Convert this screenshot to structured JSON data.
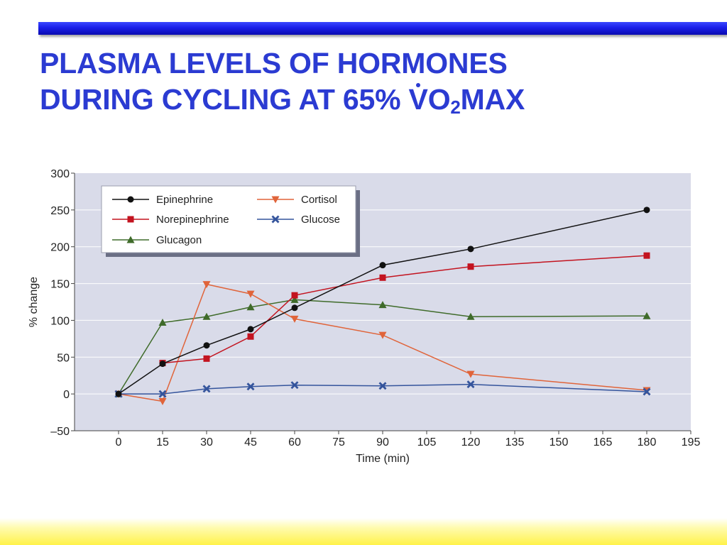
{
  "slide": {
    "title_line1": "PLASMA LEVELS OF HORMONES",
    "title_line2_pre": "DURING CYCLING AT 65% ",
    "title_v": "V",
    "title_o": "O",
    "title_sub": "2",
    "title_post": "MAX"
  },
  "colors": {
    "title": "#2b3bd2",
    "plot_background": "#d9dbe9",
    "epinephrine": "#111111",
    "norepinephrine": "#c3131f",
    "glucagon": "#3f6b2a",
    "cortisol": "#e0643a",
    "glucose": "#34549c"
  },
  "chart_data": {
    "type": "line",
    "xlabel": "Time (min)",
    "ylabel": "% change",
    "xlim": [
      -15,
      195
    ],
    "ylim": [
      -50,
      300
    ],
    "x_ticks": [
      0,
      15,
      30,
      45,
      60,
      75,
      90,
      105,
      120,
      135,
      150,
      165,
      180,
      195
    ],
    "y_ticks": [
      -50,
      0,
      50,
      100,
      150,
      200,
      250,
      300
    ],
    "x_tick_labels": [
      "0",
      "15",
      "30",
      "45",
      "60",
      "75",
      "90",
      "105",
      "120",
      "135",
      "150",
      "165",
      "180",
      "195"
    ],
    "y_tick_labels": [
      "–50",
      "0",
      "50",
      "100",
      "150",
      "200",
      "250",
      "300"
    ],
    "grid": "horizontal",
    "legend_position": "top-left",
    "series": [
      {
        "name": "Epinephrine",
        "marker": "circle",
        "color": "#111111",
        "x": [
          0,
          15,
          30,
          45,
          60,
          90,
          120,
          180
        ],
        "y": [
          0,
          41,
          66,
          88,
          117,
          175,
          197,
          250
        ]
      },
      {
        "name": "Norepinephrine",
        "marker": "square",
        "color": "#c3131f",
        "x": [
          15,
          30,
          45,
          60,
          90,
          120,
          180
        ],
        "y": [
          42,
          48,
          78,
          134,
          158,
          173,
          188
        ]
      },
      {
        "name": "Glucagon",
        "marker": "triangle-up",
        "color": "#3f6b2a",
        "x": [
          0,
          15,
          30,
          45,
          60,
          90,
          120,
          180
        ],
        "y": [
          0,
          97,
          105,
          118,
          128,
          121,
          105,
          106
        ]
      },
      {
        "name": "Cortisol",
        "marker": "triangle-down",
        "color": "#e0643a",
        "x": [
          0,
          15,
          30,
          45,
          60,
          90,
          120,
          180
        ],
        "y": [
          0,
          -10,
          149,
          136,
          102,
          80,
          27,
          5
        ]
      },
      {
        "name": "Glucose",
        "marker": "x",
        "color": "#34549c",
        "x": [
          0,
          15,
          30,
          45,
          60,
          90,
          120,
          180
        ],
        "y": [
          0,
          0,
          7,
          10,
          12,
          11,
          13,
          3
        ]
      }
    ]
  }
}
